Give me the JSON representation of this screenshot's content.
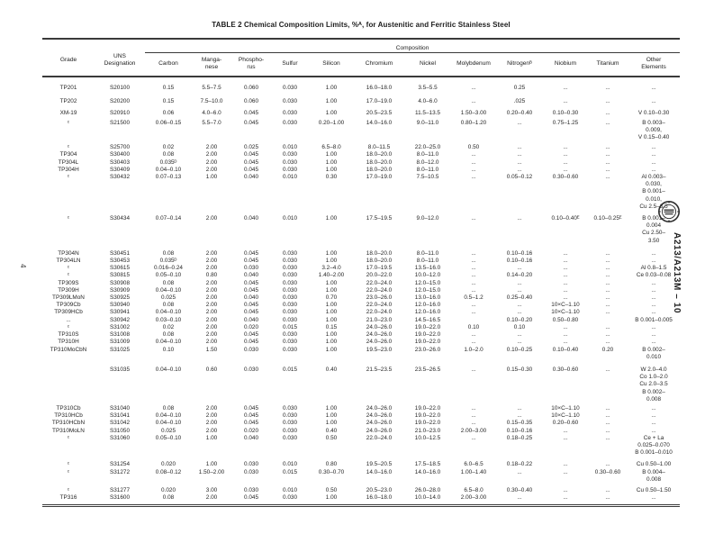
{
  "page": {
    "number": "4",
    "side_label": "A213/A213M – 10"
  },
  "table": {
    "title": "TABLE 2  Chemical Composition Limits, %ᴬ, for Austenitic and Ferritic Stainless Steel",
    "group_header": "Composition",
    "col_grade": "Grade",
    "col_uns": "UNS\nDesignation",
    "columns": [
      "Carbon",
      "Manga-\nnese",
      "Phospho-\nrus",
      "Sulfur",
      "Silicon",
      "Chromium",
      "Nickel",
      "Molybdenum",
      "Nitrogenᴮ",
      "Niobium",
      "Titanium",
      "Other\nElements"
    ],
    "rows": [
      {
        "gap": 8,
        "cells": [
          "TP201",
          "S20100",
          "0.15",
          "5.5–7.5",
          "0.060",
          "0.030",
          "1.00",
          "16.0–18.0",
          "3.5–5.5",
          "...",
          "0.25",
          "...",
          "...",
          "..."
        ]
      },
      {
        "gap": 7,
        "cells": [
          "TP202",
          "S20200",
          "0.15",
          "7.5–10.0",
          "0.060",
          "0.030",
          "1.00",
          "17.0–19.0",
          "4.0–6.0",
          "...",
          ".025",
          "...",
          "...",
          "..."
        ]
      },
      {
        "gap": 5,
        "cells": [
          "XM-19",
          "S20910",
          "0.06",
          "4.0–6.0",
          "0.045",
          "0.030",
          "1.00",
          "20.5–23.5",
          "11.5–13.5",
          "1.50–3.00",
          "0.20–0.40",
          "0.10–0.30",
          "...",
          "V 0.10–0.30"
        ]
      },
      {
        "gap": 2,
        "cells": [
          "ᶜ",
          "S21500",
          "0.06–0.15",
          "5.5–7.0",
          "0.045",
          "0.030",
          "0.20–1.00",
          "14.0–16.0",
          "9.0–11.0",
          "0.80–1.20",
          "...",
          "0.75–1.25",
          "...",
          "B 0.003–\n0.009,\nV 0.15–0.40"
        ]
      },
      {
        "gap": 3,
        "cells": [
          "ᶜ",
          "S25700",
          "0.02",
          "2.00",
          "0.025",
          "0.010",
          "6.5–8.0",
          "8.0–11.5",
          "22.0–25.0",
          "0.50",
          "...",
          "...",
          "...",
          "..."
        ]
      },
      {
        "gap": 0,
        "cells": [
          "TP304",
          "S30400",
          "0.08",
          "2.00",
          "0.045",
          "0.030",
          "1.00",
          "18.0–20.0",
          "8.0–11.0",
          "...",
          "...",
          "...",
          "...",
          "..."
        ]
      },
      {
        "gap": 0,
        "cells": [
          "TP304L",
          "S30403",
          "0.035ᴰ",
          "2.00",
          "0.045",
          "0.030",
          "1.00",
          "18.0–20.0",
          "8.0–12.0",
          "...",
          "...",
          "...",
          "...",
          "..."
        ]
      },
      {
        "gap": 0,
        "cells": [
          "TP304H",
          "S30409",
          "0.04–0.10",
          "2.00",
          "0.045",
          "0.030",
          "1.00",
          "18.0–20.0",
          "8.0–11.0",
          "...",
          "...",
          "...",
          "...",
          "..."
        ]
      },
      {
        "gap": 0,
        "cells": [
          "ᶜ",
          "S30432",
          "0.07–0.13",
          "1.00",
          "0.040",
          "0.010",
          "0.30",
          "17.0–19.0",
          "7.5–10.5",
          "...",
          "0.05–0.12",
          "0.30–0.60",
          "...",
          "Al 0.003–\n0.030,\nB 0.001–\n0.010,\nCu 2.5–3.5"
        ]
      },
      {
        "gap": 5,
        "cells": [
          "ᶜ",
          "S30434",
          "0.07–0.14",
          "2.00",
          "0.040",
          "0.010",
          "1.00",
          "17.5–19.5",
          "9.0–12.0",
          "...",
          "...",
          "0.10–0.40ᴱ",
          "0.10–0.25ᴱ",
          "B 0.001–\n0.004\nCu 2.50–\n3.50"
        ]
      },
      {
        "gap": 6,
        "cells": [
          "TP304N",
          "S30451",
          "0.08",
          "2.00",
          "0.045",
          "0.030",
          "1.00",
          "18.0–20.0",
          "8.0–11.0",
          "...",
          "0.10–0.16",
          "...",
          "...",
          "..."
        ]
      },
      {
        "gap": 0,
        "cells": [
          "TP304LN",
          "S30453",
          "0.035ᴰ",
          "2.00",
          "0.045",
          "0.030",
          "1.00",
          "18.0–20.0",
          "8.0–11.0",
          "...",
          "0.10–0.16",
          "...",
          "...",
          "..."
        ]
      },
      {
        "gap": 0,
        "cells": [
          "ᶜ",
          "S30615",
          "0.016–0.24",
          "2.00",
          "0.030",
          "0.030",
          "3.2–4.0",
          "17.0–19.5",
          "13.5–16.0",
          "...",
          "...",
          "...",
          "...",
          "Al 0.8–1.5"
        ]
      },
      {
        "gap": 0,
        "cells": [
          "ᶜ",
          "S30815",
          "0.05–0.10",
          "0.80",
          "0.040",
          "0.030",
          "1.40–2.00",
          "20.0–22.0",
          "10.0–12.0",
          "...",
          "0.14–0.20",
          "...",
          "...",
          "Ce 0.03–0.08"
        ]
      },
      {
        "gap": 0,
        "cells": [
          "TP309S",
          "S30908",
          "0.08",
          "2.00",
          "0.045",
          "0.030",
          "1.00",
          "22.0–24.0",
          "12.0–15.0",
          "...",
          "...",
          "...",
          "...",
          "..."
        ]
      },
      {
        "gap": 0,
        "cells": [
          "TP309H",
          "S30909",
          "0.04–0.10",
          "2.00",
          "0.045",
          "0.030",
          "1.00",
          "22.0–24.0",
          "12.0–15.0",
          "...",
          "...",
          "...",
          "...",
          "..."
        ]
      },
      {
        "gap": 0,
        "cells": [
          "TP309LMoN",
          "S30925",
          "0.025",
          "2.00",
          "0.040",
          "0.030",
          "0.70",
          "23.0–26.0",
          "13.0–16.0",
          "0.5–1.2",
          "0.25–0.40",
          "...",
          "...",
          "..."
        ]
      },
      {
        "gap": 0,
        "cells": [
          "TP309Cb",
          "S30940",
          "0.08",
          "2.00",
          "0.045",
          "0.030",
          "1.00",
          "22.0–24.0",
          "12.0–16.0",
          "...",
          "...",
          "10×C–1.10",
          "...",
          "..."
        ]
      },
      {
        "gap": 0,
        "cells": [
          "TP309HCb",
          "S30941",
          "0.04–0.10",
          "2.00",
          "0.045",
          "0.030",
          "1.00",
          "22.0–24.0",
          "12.0–16.0",
          "...",
          "...",
          "10×C–1.10",
          "...",
          "..."
        ]
      },
      {
        "gap": 0,
        "cells": [
          "...",
          "S30942",
          "0.03–0.10",
          "2.00",
          "0.040",
          "0.030",
          "1.00",
          "21.0–23.0",
          "14.5–16.5",
          "",
          "0.10–0.20",
          "0.50–0.80",
          "",
          "B 0.001–0.005"
        ]
      },
      {
        "gap": 0,
        "cells": [
          "ᶜ",
          "S31002",
          "0.02",
          "2.00",
          "0.020",
          "0.015",
          "0.15",
          "24.0–26.0",
          "19.0–22.0",
          "0.10",
          "0.10",
          "...",
          "...",
          "..."
        ]
      },
      {
        "gap": 0,
        "cells": [
          "TP310S",
          "S31008",
          "0.08",
          "2.00",
          "0.045",
          "0.030",
          "1.00",
          "24.0–26.0",
          "19.0–22.0",
          "...",
          "...",
          "...",
          "...",
          "..."
        ]
      },
      {
        "gap": 0,
        "cells": [
          "TP310H",
          "S31009",
          "0.04–0.10",
          "2.00",
          "0.045",
          "0.030",
          "1.00",
          "24.0–26.0",
          "19.0–22.0",
          "...",
          "...",
          "...",
          "...",
          "..."
        ]
      },
      {
        "gap": 0,
        "cells": [
          "TP310MoCbN",
          "S31025",
          "0.10",
          "1.50",
          "0.030",
          "0.030",
          "1.00",
          "19.5–23.0",
          "23.0–26.0",
          "1.0–2.0",
          "0.10–0.25",
          "0.10–0.40",
          "0.20",
          "B 0.002–\n0.010"
        ]
      },
      {
        "gap": 6,
        "cells": [
          "",
          "S31035",
          "0.04–0.10",
          "0.60",
          "0.030",
          "0.015",
          "0.40",
          "21.5–23.5",
          "23.5–26.5",
          "...",
          "0.15–0.30",
          "0.30–0.60",
          "...",
          "W 2.0–4.0\nCo 1.0–2.0\nCu 2.0–3.5\nB 0.002–\n0.008"
        ]
      },
      {
        "gap": 2,
        "cells": [
          "TP310Cb",
          "S31040",
          "0.08",
          "2.00",
          "0.045",
          "0.030",
          "1.00",
          "24.0–26.0",
          "19.0–22.0",
          "...",
          "...",
          "10×C–1.10",
          "...",
          "..."
        ]
      },
      {
        "gap": 0,
        "cells": [
          "TP310HCb",
          "S31041",
          "0.04–0.10",
          "2.00",
          "0.045",
          "0.030",
          "1.00",
          "24.0–26.0",
          "19.0–22.0",
          "...",
          "...",
          "10×C–1.10",
          "...",
          "..."
        ]
      },
      {
        "gap": 0,
        "cells": [
          "TP310HCbN",
          "S31042",
          "0.04–0.10",
          "2.00",
          "0.045",
          "0.030",
          "1.00",
          "24.0–26.0",
          "19.0–22.0",
          "...",
          "0.15–0.35",
          "0.20–0.60",
          "...",
          "..."
        ]
      },
      {
        "gap": 0,
        "cells": [
          "TP310MoLN",
          "S31050",
          "0.025",
          "2.00",
          "0.020",
          "0.030",
          "0.40",
          "24.0–26.0",
          "21.0–23.0",
          "2.00–3.00",
          "0.10–0.16",
          "...",
          "...",
          "..."
        ]
      },
      {
        "gap": 0,
        "cells": [
          "ᶜ",
          "S31060",
          "0.05–0.10",
          "1.00",
          "0.040",
          "0.030",
          "0.50",
          "22.0–24.0",
          "10.0–12.5",
          "...",
          "0.18–0.25",
          "...",
          "...",
          "Ce + La\n0.025–0.070\nB 0.001–0.010"
        ]
      },
      {
        "gap": 5,
        "cells": [
          "ᶜ",
          "S31254",
          "0.020",
          "1.00",
          "0.030",
          "0.010",
          "0.80",
          "19.5–20.5",
          "17.5–18.5",
          "6.0–6.5",
          "0.18–0.22",
          "...",
          "...",
          "Cu 0.50–1.00"
        ]
      },
      {
        "gap": 0,
        "cells": [
          "ᶜ",
          "S31272",
          "0.08–0.12",
          "1.50–2.00",
          "0.030",
          "0.015",
          "0.30–0.70",
          "14.0–16.0",
          "14.0–16.0",
          "1.00–1.40",
          "...",
          "...",
          "0.30–0.60",
          "B 0.004–\n0.008"
        ]
      },
      {
        "gap": 4,
        "cells": [
          "ᶜ",
          "S31277",
          "0.020",
          "3.00",
          "0.030",
          "0.010",
          "0.50",
          "20.5–23.0",
          "26.0–28.0",
          "6.5–8.0",
          "0.30–0.40",
          "...",
          "...",
          "Cu 0.50–1.50"
        ]
      },
      {
        "gap": 0,
        "cells": [
          "TP316",
          "S31600",
          "0.08",
          "2.00",
          "0.045",
          "0.030",
          "1.00",
          "16.0–18.0",
          "10.0–14.0",
          "2.00–3.00",
          "...",
          "...",
          "...",
          "..."
        ]
      }
    ]
  }
}
